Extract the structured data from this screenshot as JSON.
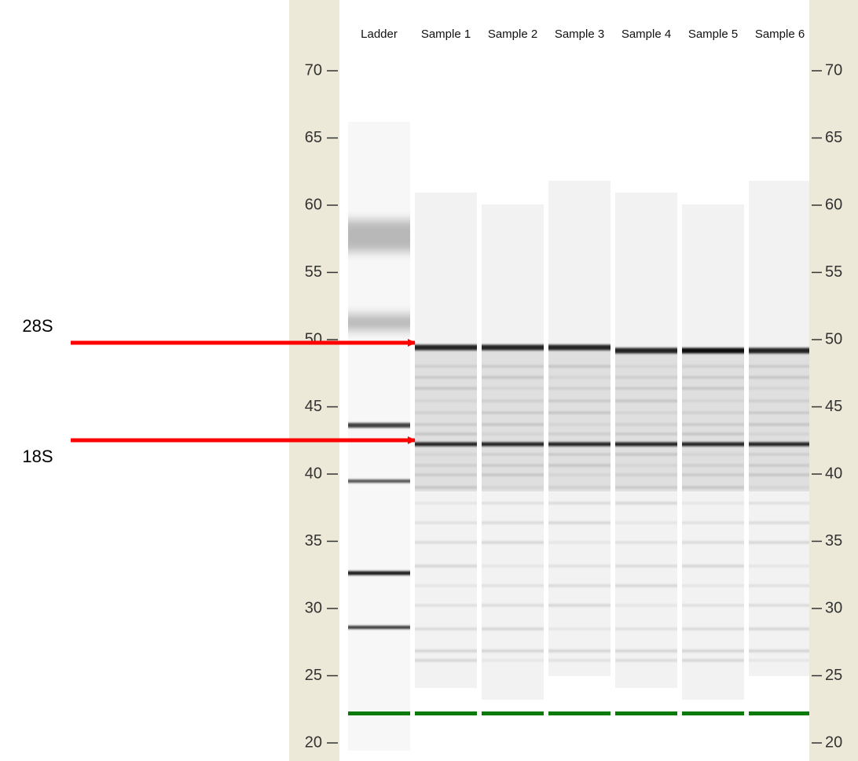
{
  "lanes": [
    "Ladder",
    "Sample 1",
    "Sample 2",
    "Sample 3",
    "Sample 4",
    "Sample 5",
    "Sample 6"
  ],
  "axis": {
    "ticks": [
      70,
      65,
      60,
      55,
      50,
      45,
      40,
      35,
      30,
      25,
      20
    ]
  },
  "annotations": [
    {
      "label": "28S"
    },
    {
      "label": "18S"
    }
  ]
}
